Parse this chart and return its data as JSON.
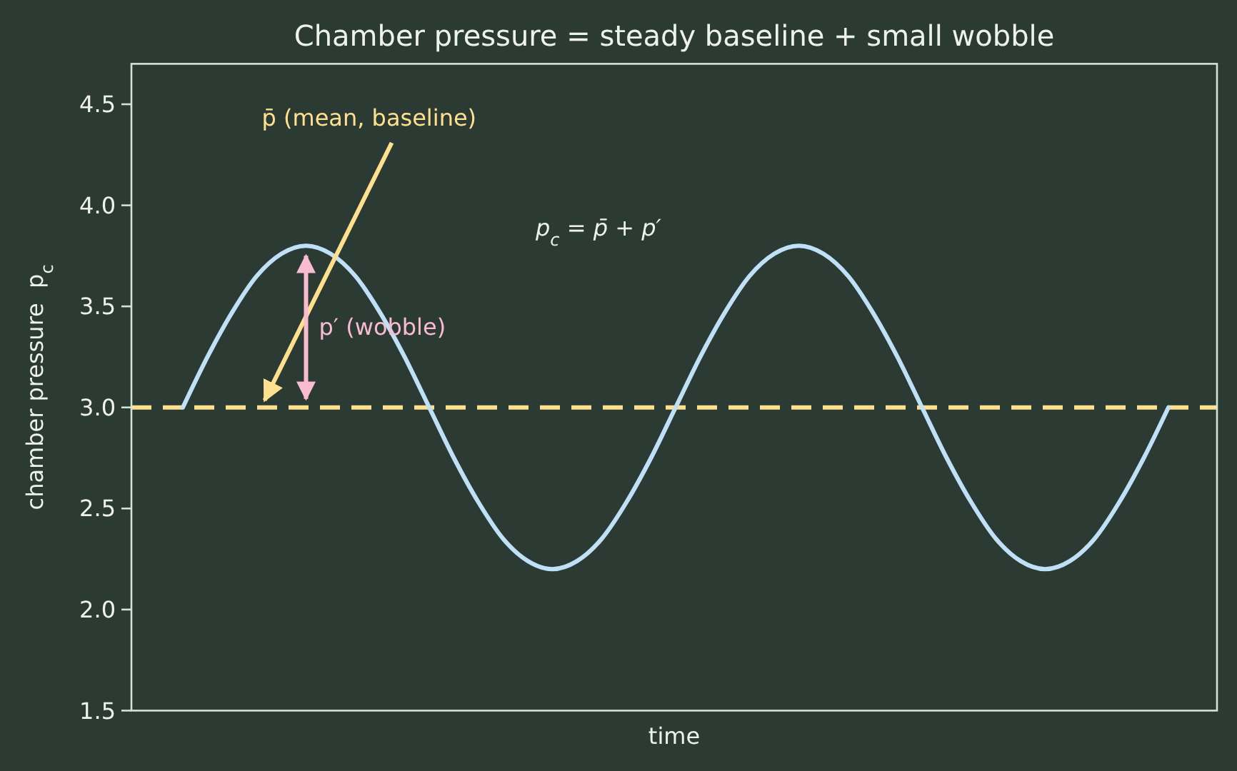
{
  "chart_data": {
    "type": "line",
    "title": "Chamber pressure = steady baseline + small wobble",
    "xlabel": "time",
    "ylabel": "chamber pressure  p$_{c}$",
    "categories": [
      null,
      null,
      null,
      null,
      null,
      null,
      null,
      null,
      null,
      null,
      null,
      null,
      null,
      null,
      null,
      null,
      null,
      null,
      null,
      null,
      null,
      null,
      null,
      null,
      null,
      null,
      null,
      null,
      null,
      null,
      null,
      null,
      null,
      null,
      null,
      null,
      null,
      null,
      null,
      null,
      null
    ],
    "values": [
      3,
      3.25,
      3.47,
      3.65,
      3.76,
      3.8,
      3.76,
      3.65,
      3.47,
      3.25,
      3,
      2.75,
      2.53,
      2.35,
      2.24,
      2.2,
      2.24,
      2.35,
      2.53,
      2.75,
      3,
      3.25,
      3.47,
      3.65,
      3.76,
      3.8,
      3.76,
      3.65,
      3.47,
      3.25,
      3,
      2.75,
      2.53,
      2.35,
      2.24,
      2.2,
      2.24,
      2.35,
      2.53,
      2.75,
      3
    ],
    "color": "#bfe0f7",
    "ylim": [
      1.5,
      4.7
    ],
    "yticks": [
      1.5,
      {
        "value": 2,
        "label": "2.0"
      },
      2.5,
      {
        "value": 3,
        "label": "3.0"
      },
      3.5,
      {
        "value": 4,
        "label": "4.0"
      },
      4.5
    ],
    "tick_labels": "y",
    "ref_lines": [
      {
        "axis": "y",
        "value": 3,
        "label": "p̄ (mean, baseline)",
        "color": "#ffe08f",
        "line_style": "dashed"
      }
    ],
    "annotations": [
      "p′ (wobble)",
      "p$_{c}$ = p̄ + p′"
    ]
  }
}
